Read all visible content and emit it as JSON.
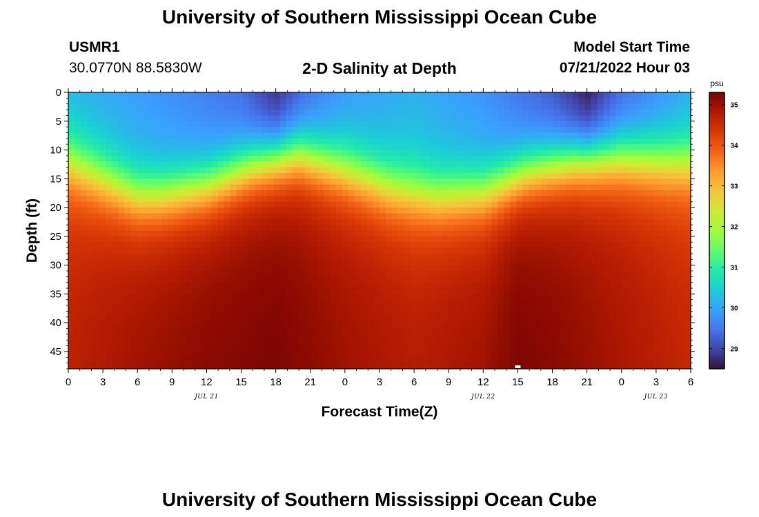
{
  "header": {
    "title": "University of Southern Mississippi Ocean Cube",
    "station": "USMR1",
    "coords": "30.0770N  88.5830W",
    "plot_title": "2-D Salinity at Depth",
    "model_label": "Model Start Time",
    "model_time": "07/21/2022 Hour 03"
  },
  "footer": {
    "title": "University of Southern Mississippi Ocean Cube"
  },
  "chart_data": {
    "type": "heatmap",
    "title": "2-D Salinity at Depth",
    "xlabel": "Forecast Time(Z)",
    "ylabel": "Depth (ft)",
    "x_tick_labels": [
      "0",
      "3",
      "6",
      "9",
      "12",
      "15",
      "18",
      "21",
      "0",
      "3",
      "6",
      "9",
      "12",
      "15",
      "18",
      "21",
      "0",
      "3",
      "6"
    ],
    "x_range_hours": [
      0,
      54
    ],
    "date_labels": [
      {
        "label": "JUL 21",
        "hour": 12
      },
      {
        "label": "JUL 22",
        "hour": 36
      },
      {
        "label": "JUL 23",
        "hour": 51
      }
    ],
    "y_ticks": [
      0,
      5,
      10,
      15,
      20,
      25,
      30,
      35,
      40,
      45
    ],
    "ylim": [
      0,
      48
    ],
    "y_inverted": true,
    "colorbar": {
      "unit": "psu",
      "range": [
        28.5,
        35.3
      ],
      "ticks": [
        29,
        30,
        31,
        32,
        33,
        34,
        35
      ],
      "colors": [
        "#30123b",
        "#4145ab",
        "#4675ed",
        "#39a2fc",
        "#1bcfd4",
        "#24eca6",
        "#61fc6c",
        "#a4fc3b",
        "#d1e834",
        "#f3c63a",
        "#fe9b2d",
        "#f36315",
        "#d93806",
        "#b11901",
        "#7a0402"
      ]
    },
    "halocline_depth_ft": {
      "hours": [
        0,
        4,
        6,
        8,
        12,
        16,
        20,
        24,
        28,
        32,
        36,
        40,
        44,
        48,
        52,
        54
      ],
      "values": [
        11,
        15,
        17,
        17,
        15.5,
        12,
        10,
        12.5,
        15.5,
        17,
        16.5,
        13,
        11,
        10.5,
        11,
        11
      ]
    },
    "surface_salinity_psu": {
      "hours": [
        0,
        6,
        12,
        15,
        18,
        21,
        24,
        30,
        36,
        42,
        45,
        48,
        54
      ],
      "values": [
        30.2,
        29.9,
        29.6,
        29.4,
        28.8,
        29.5,
        29.9,
        30.1,
        29.8,
        29.2,
        28.6,
        29.4,
        30.1
      ]
    },
    "bottom_salinity_psu": {
      "hours": [
        0,
        6,
        12,
        18,
        24,
        30,
        36,
        39,
        42,
        48,
        54
      ],
      "values": [
        34.7,
        35.0,
        35.2,
        35.3,
        35.0,
        34.8,
        35.0,
        35.3,
        35.2,
        34.9,
        34.6
      ]
    },
    "marker": {
      "hour": 39,
      "depth_ft": 48
    }
  }
}
